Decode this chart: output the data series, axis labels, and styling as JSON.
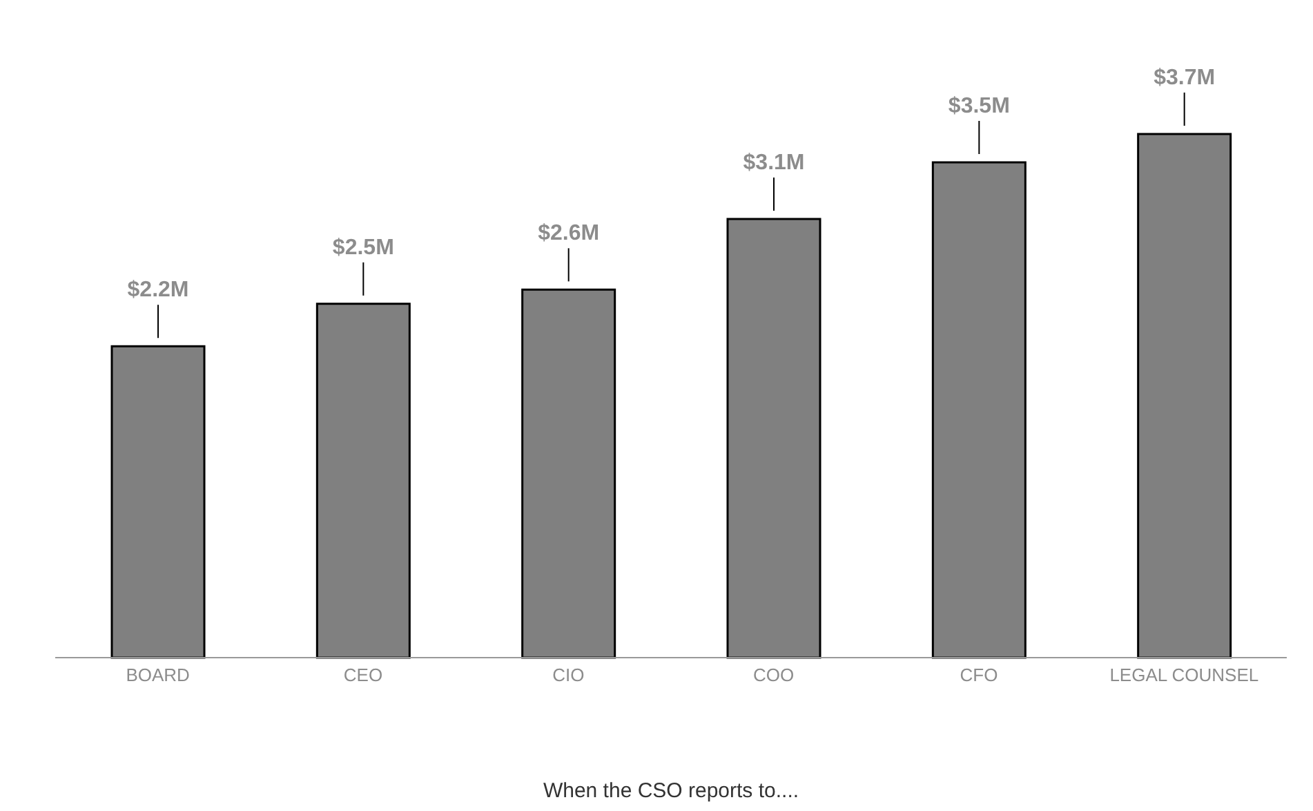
{
  "chart_data": {
    "type": "bar",
    "xlabel": "When the CSO reports to....",
    "categories": [
      "BOARD",
      "CEO",
      "CIO",
      "COO",
      "CFO",
      "LEGAL COUNSEL"
    ],
    "values": [
      2.2,
      2.5,
      2.6,
      3.1,
      3.5,
      3.7
    ],
    "value_labels": [
      "$2.2M",
      "$2.5M",
      "$2.6M",
      "$3.1M",
      "$3.5M",
      "$3.7M"
    ],
    "color": "#808080",
    "tick_labels": "x"
  }
}
